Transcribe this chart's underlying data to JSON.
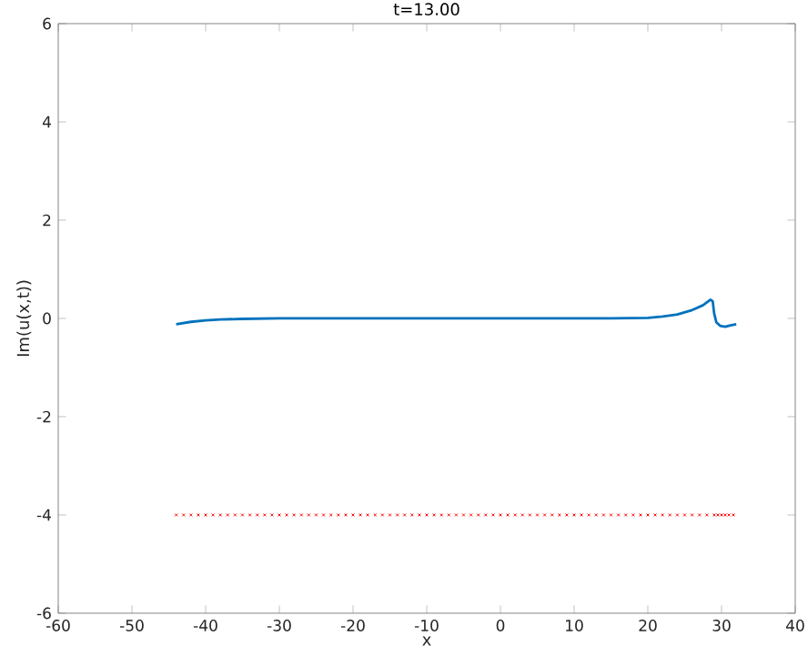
{
  "chart_data": {
    "type": "line",
    "title": "t=13.00",
    "xlabel": "x",
    "ylabel": "Im(u(x,t))",
    "xlim": [
      -60,
      40
    ],
    "xticks": [
      -60,
      -50,
      -40,
      -30,
      -20,
      -10,
      0,
      10,
      20,
      30,
      40
    ],
    "ylim": [
      -6,
      6
    ],
    "yticks": [
      -6,
      -4,
      -2,
      0,
      2,
      4,
      6
    ],
    "series": [
      {
        "color": "#0072bd",
        "x": [
          -44,
          -42,
          -40,
          -38,
          -35,
          -30,
          0,
          15,
          20,
          22,
          24,
          26,
          27.5,
          28.5,
          28.8,
          29,
          29.3,
          29.8,
          30.5,
          31.2,
          32
        ],
        "values": [
          -0.12,
          -0.07,
          -0.04,
          -0.02,
          -0.01,
          0,
          0,
          0,
          0.01,
          0.04,
          0.08,
          0.17,
          0.27,
          0.38,
          0.35,
          0.1,
          -0.08,
          -0.15,
          -0.17,
          -0.14,
          -0.12
        ]
      },
      {
        "type": "scatter",
        "color": "#ff0000",
        "marker": "cross",
        "x": [
          -44,
          -43,
          -42,
          -41,
          -40,
          -39,
          -38,
          -37,
          -36,
          -35,
          -34,
          -33,
          -32,
          -31,
          -30,
          -29,
          -28,
          -27,
          -26,
          -25,
          -24,
          -23,
          -22,
          -21,
          -20,
          -19,
          -18,
          -17,
          -16,
          -15,
          -14,
          -13,
          -12,
          -11,
          -10,
          -9,
          -8,
          -7,
          -6,
          -5,
          -4,
          -3,
          -2,
          -1,
          0,
          1,
          2,
          3,
          4,
          5,
          6,
          7,
          8,
          9,
          10,
          11,
          12,
          13,
          14,
          15,
          16,
          17,
          18,
          19,
          20,
          21,
          22,
          23,
          24,
          25,
          26,
          27,
          28,
          29,
          29.5,
          30,
          30.5,
          31,
          31.6
        ],
        "values": [
          -4,
          -4,
          -4,
          -4,
          -4,
          -4,
          -4,
          -4,
          -4,
          -4,
          -4,
          -4,
          -4,
          -4,
          -4,
          -4,
          -4,
          -4,
          -4,
          -4,
          -4,
          -4,
          -4,
          -4,
          -4,
          -4,
          -4,
          -4,
          -4,
          -4,
          -4,
          -4,
          -4,
          -4,
          -4,
          -4,
          -4,
          -4,
          -4,
          -4,
          -4,
          -4,
          -4,
          -4,
          -4,
          -4,
          -4,
          -4,
          -4,
          -4,
          -4,
          -4,
          -4,
          -4,
          -4,
          -4,
          -4,
          -4,
          -4,
          -4,
          -4,
          -4,
          -4,
          -4,
          -4,
          -4,
          -4,
          -4,
          -4,
          -4,
          -4,
          -4,
          -4,
          -4,
          -4,
          -4,
          -4,
          -4,
          -4
        ]
      }
    ]
  }
}
